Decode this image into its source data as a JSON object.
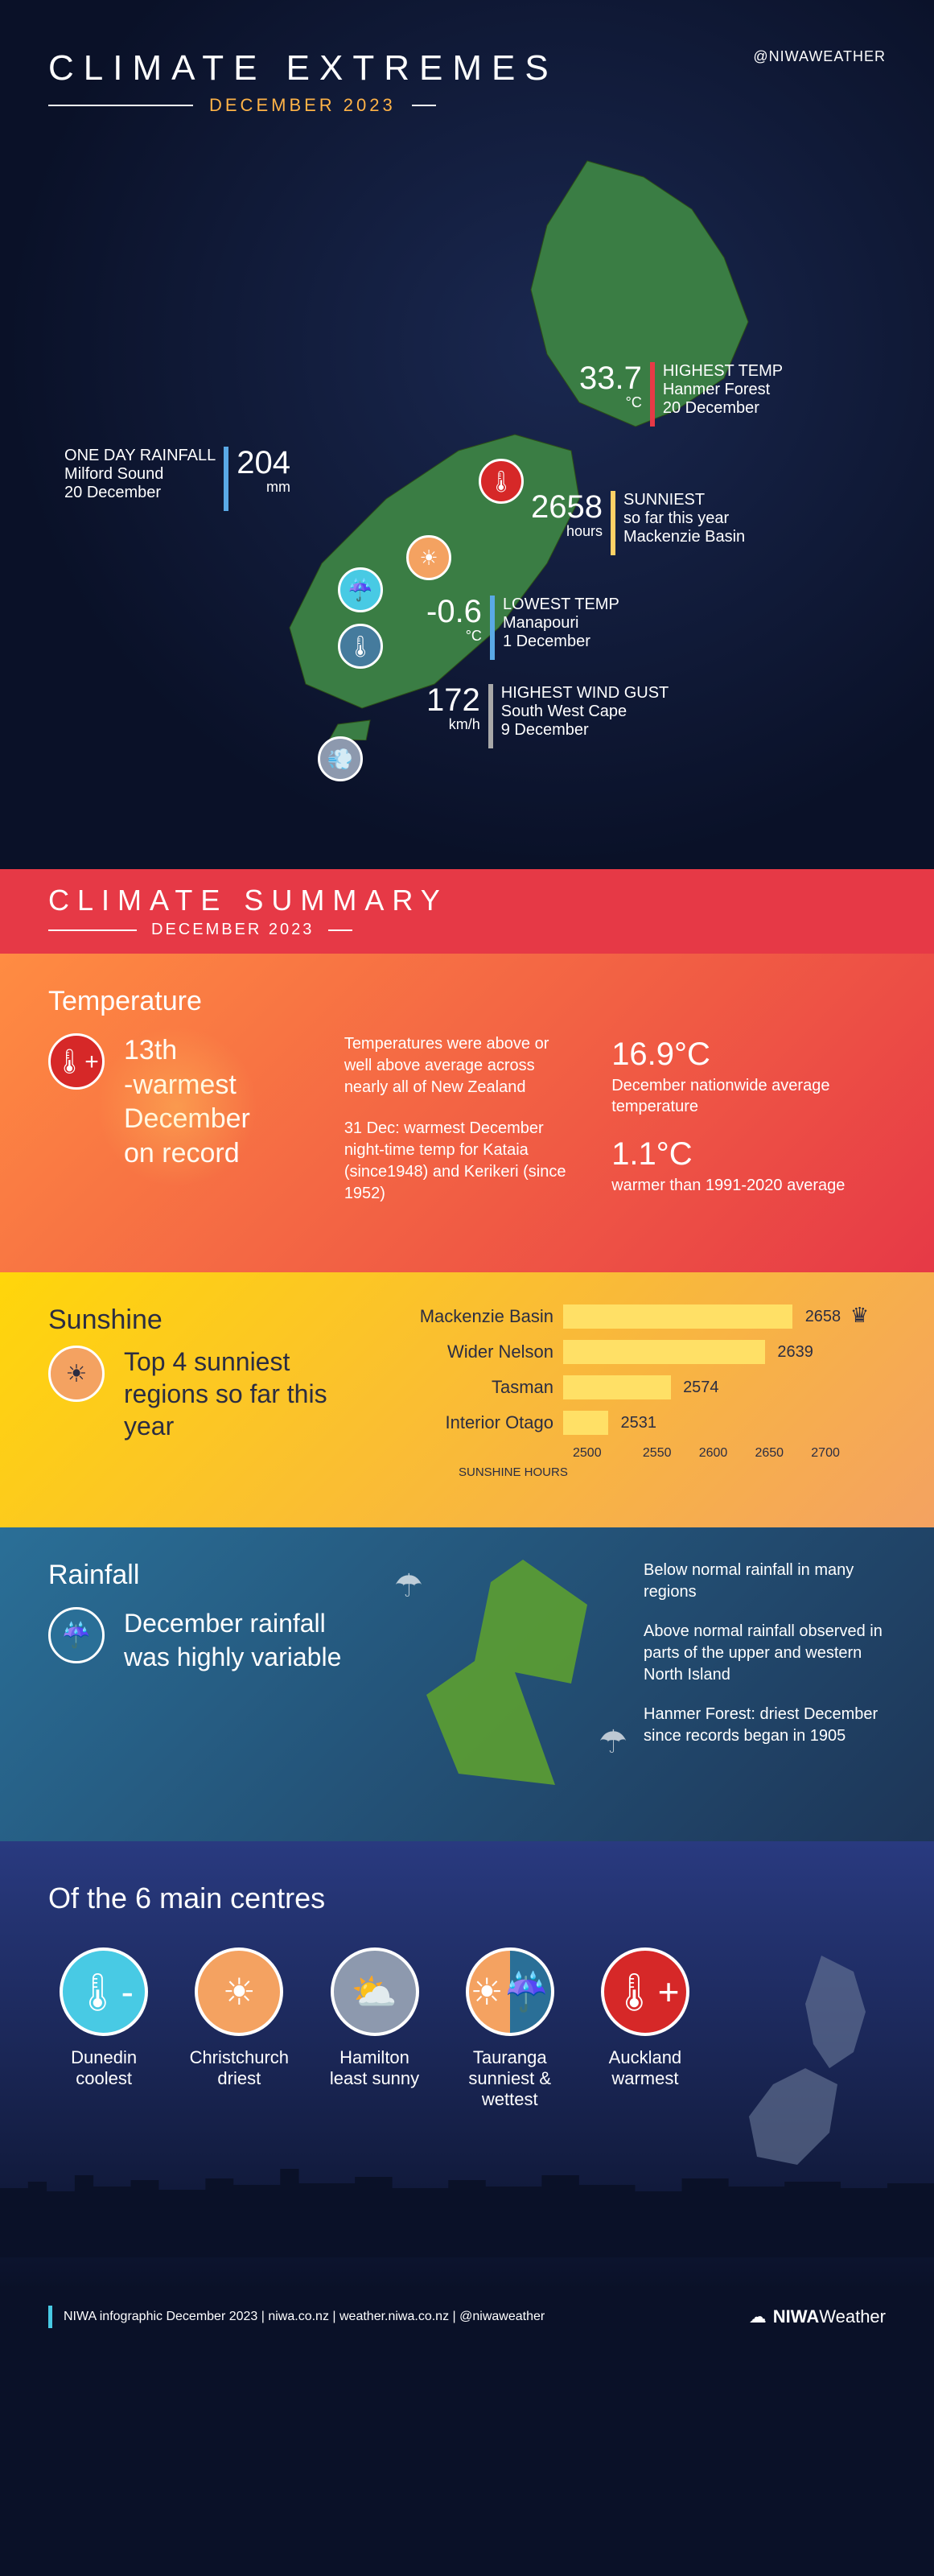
{
  "header": {
    "title": "CLIMATE EXTREMES",
    "subtitle": "DECEMBER 2023",
    "handle": "@NIWAWEATHER"
  },
  "colors": {
    "red": "#e63946",
    "blue": "#5aa9e6",
    "yellow": "#ffd166",
    "gray": "#a8a8a8",
    "orange": "#f4a261",
    "darkblue": "#2a6f97",
    "bg": "#0a1128"
  },
  "callouts": {
    "highest_temp": {
      "value": "33.7",
      "unit": "°C",
      "title": "HIGHEST TEMP",
      "place": "Hanmer Forest",
      "date": "20 December",
      "bar_color": "#e63946"
    },
    "one_day_rain": {
      "value": "204",
      "unit": "mm",
      "title": "ONE DAY RAINFALL",
      "place": "Milford Sound",
      "date": "20 December",
      "bar_color": "#5aa9e6"
    },
    "sunniest": {
      "value": "2658",
      "unit": "hours",
      "title": "SUNNIEST",
      "place": "so far this year",
      "date": "Mackenzie Basin",
      "bar_color": "#ffd166"
    },
    "lowest_temp": {
      "value": "-0.6",
      "unit": "°C",
      "title": "LOWEST TEMP",
      "place": "Manapouri",
      "date": "1 December",
      "bar_color": "#5aa9e6"
    },
    "wind": {
      "value": "172",
      "unit": "km/h",
      "title": "HIGHEST WIND GUST",
      "place": "South West Cape",
      "date": "9 December",
      "bar_color": "#a8a8a8"
    }
  },
  "summary_banner": {
    "title": "CLIMATE SUMMARY",
    "subtitle": "DECEMBER 2023"
  },
  "temperature": {
    "heading": "Temperature",
    "headline": "13th\n-warmest\nDecember\non record",
    "para1": "Temperatures were above or well above average across nearly all of New Zealand",
    "para2": "31 Dec: warmest December night-time temp for Kataia (since1948) and Kerikeri (since 1952)",
    "avg_temp": "16.9°C",
    "avg_label": "December nationwide average temperature",
    "delta": "1.1°C",
    "delta_label": "warmer than 1991-2020 average"
  },
  "sunshine": {
    "heading": "Sunshine",
    "headline": "Top 4 sunniest regions so far this year",
    "axis_label": "SUNSHINE HOURS",
    "xmin": 2500,
    "xmax": 2700,
    "xstep": 50,
    "bars": [
      {
        "label": "Mackenzie Basin",
        "value": 2658,
        "crown": true
      },
      {
        "label": "Wider Nelson",
        "value": 2639,
        "crown": false
      },
      {
        "label": "Tasman",
        "value": 2574,
        "crown": false
      },
      {
        "label": "Interior Otago",
        "value": 2531,
        "crown": false
      }
    ],
    "bar_color": "#ffe066",
    "ticks": [
      "2500",
      "2550",
      "2600",
      "2650",
      "2700"
    ]
  },
  "rainfall": {
    "heading": "Rainfall",
    "headline": "December rainfall was highly variable",
    "p1": "Below normal rainfall in many regions",
    "p2": "Above normal rainfall observed in parts of the upper and western North Island",
    "p3": "Hanmer Forest: driest December since records began in 1905"
  },
  "centres": {
    "title": "Of the 6 main centres",
    "items": [
      {
        "name": "Dunedin",
        "desc": "coolest",
        "icon": "thermo-minus",
        "bg": "blue"
      },
      {
        "name": "Christchurch",
        "desc": "driest",
        "icon": "cracked",
        "bg": "orange"
      },
      {
        "name": "Hamilton",
        "desc": "least sunny",
        "icon": "cloud-sun",
        "bg": "gray"
      },
      {
        "name": "Tauranga",
        "desc": "sunniest & wettest",
        "icon": "sun-rain",
        "bg": "yellow-blue"
      },
      {
        "name": "Auckland",
        "desc": "warmest",
        "icon": "thermo-plus",
        "bg": "red"
      }
    ]
  },
  "footer": {
    "text": "NIWA infographic December 2023  |  niwa.co.nz  |  weather.niwa.co.nz  |  @niwaweather",
    "brand_strong": "NIWA",
    "brand_light": "Weather"
  }
}
